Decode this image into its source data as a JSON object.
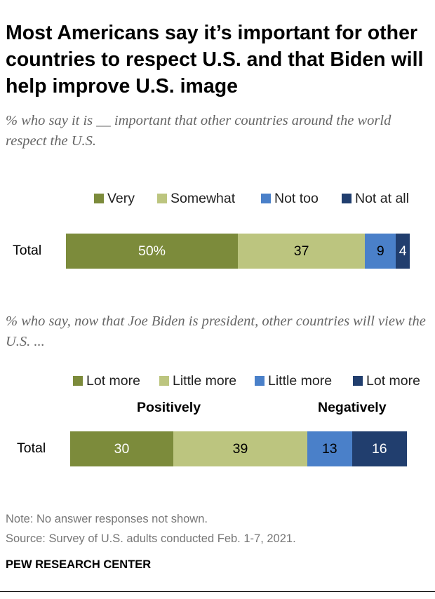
{
  "title": "Most Americans say it’s important for other countries to respect U.S. and that Biden will help improve U.S. image",
  "note": "Note: No answer responses not shown.",
  "source": "Source: Survey of U.S. adults conducted Feb. 1-7, 2021.",
  "brand": "PEW RESEARCH CENTER",
  "colors": {
    "very_dark_green": "#7c8b3b",
    "light_green": "#bcc57f",
    "mid_blue": "#4a80c9",
    "dark_blue": "#213e6e"
  },
  "chart_data": [
    {
      "type": "bar",
      "orientation": "horizontal-stacked",
      "subtitle": "% who say it is __ important that other countries around the world respect the U.S.",
      "categories": [
        "Total"
      ],
      "series": [
        {
          "name": "Very",
          "values": [
            50
          ],
          "label": "50%"
        },
        {
          "name": "Somewhat",
          "values": [
            37
          ],
          "label": "37"
        },
        {
          "name": "Not too",
          "values": [
            9
          ],
          "label": "9"
        },
        {
          "name": "Not at all",
          "values": [
            4
          ],
          "label": "4"
        }
      ],
      "xlim": [
        0,
        100
      ]
    },
    {
      "type": "bar",
      "orientation": "horizontal-stacked",
      "subtitle": "% who say, now that Joe Biden is president, other countries will view the U.S. ...",
      "categories": [
        "Total"
      ],
      "groups": [
        "Positively",
        "Negatively"
      ],
      "series": [
        {
          "name": "Lot more",
          "values": [
            30
          ],
          "label": "30"
        },
        {
          "name": "Little more",
          "values": [
            39
          ],
          "label": "39"
        },
        {
          "name": "Little more",
          "values": [
            13
          ],
          "label": "13"
        },
        {
          "name": "Lot more",
          "values": [
            16
          ],
          "label": "16"
        }
      ],
      "xlim": [
        0,
        98
      ]
    }
  ]
}
